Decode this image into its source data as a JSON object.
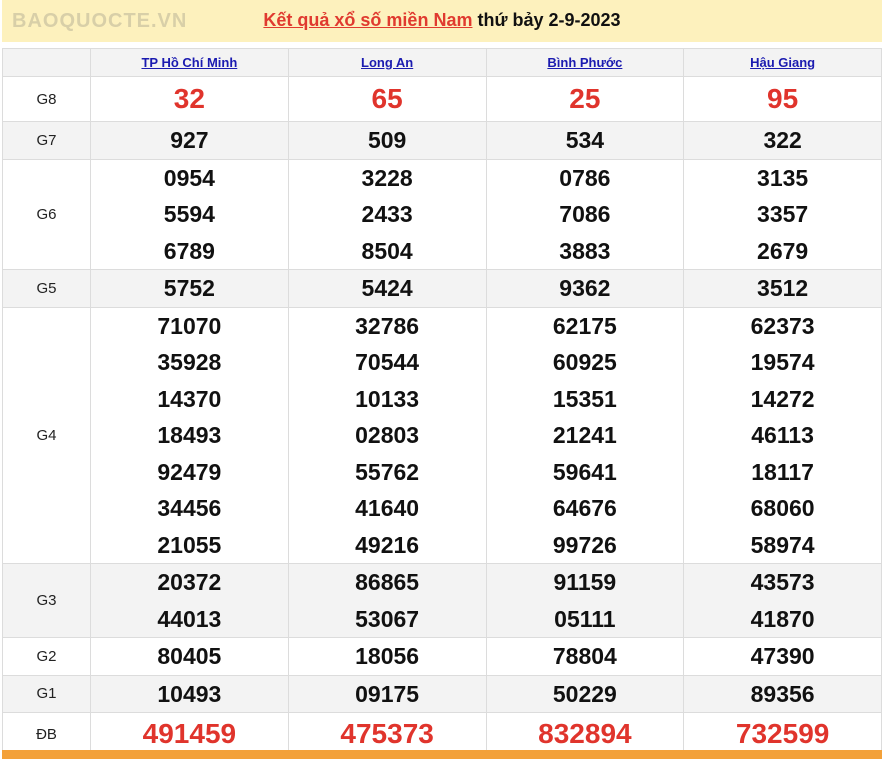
{
  "title": {
    "link": "Kết quả xổ số miền Nam",
    "rest": " thứ bảy 2-9-2023"
  },
  "provinces": [
    "TP Hồ Chí Minh",
    "Long An",
    "Bình Phước",
    "Hậu Giang"
  ],
  "prizes": [
    {
      "label": "G8",
      "values": [
        [
          "32"
        ],
        [
          "65"
        ],
        [
          "25"
        ],
        [
          "95"
        ]
      ]
    },
    {
      "label": "G7",
      "values": [
        [
          "927"
        ],
        [
          "509"
        ],
        [
          "534"
        ],
        [
          "322"
        ]
      ]
    },
    {
      "label": "G6",
      "values": [
        [
          "0954",
          "5594",
          "6789"
        ],
        [
          "3228",
          "2433",
          "8504"
        ],
        [
          "0786",
          "7086",
          "3883"
        ],
        [
          "3135",
          "3357",
          "2679"
        ]
      ]
    },
    {
      "label": "G5",
      "values": [
        [
          "5752"
        ],
        [
          "5424"
        ],
        [
          "9362"
        ],
        [
          "3512"
        ]
      ]
    },
    {
      "label": "G4",
      "values": [
        [
          "71070",
          "35928",
          "14370",
          "18493",
          "92479",
          "34456",
          "21055"
        ],
        [
          "32786",
          "70544",
          "10133",
          "02803",
          "55762",
          "41640",
          "49216"
        ],
        [
          "62175",
          "60925",
          "15351",
          "21241",
          "59641",
          "64676",
          "99726"
        ],
        [
          "62373",
          "19574",
          "14272",
          "46113",
          "18117",
          "68060",
          "58974"
        ]
      ]
    },
    {
      "label": "G3",
      "values": [
        [
          "20372",
          "44013"
        ],
        [
          "86865",
          "53067"
        ],
        [
          "91159",
          "05111"
        ],
        [
          "43573",
          "41870"
        ]
      ]
    },
    {
      "label": "G2",
      "values": [
        [
          "80405"
        ],
        [
          "18056"
        ],
        [
          "78804"
        ],
        [
          "47390"
        ]
      ]
    },
    {
      "label": "G1",
      "values": [
        [
          "10493"
        ],
        [
          "09175"
        ],
        [
          "50229"
        ],
        [
          "89356"
        ]
      ]
    },
    {
      "label": "ĐB",
      "values": [
        [
          "491459"
        ],
        [
          "475373"
        ],
        [
          "832894"
        ],
        [
          "732599"
        ]
      ]
    }
  ],
  "watermark": "BAOQUOCTE.VN",
  "colors": {
    "accent_red": "#e0342c",
    "link_blue": "#1b1bb0",
    "title_bg": "#fdf1bd",
    "footer_bar": "#f3a13a"
  }
}
